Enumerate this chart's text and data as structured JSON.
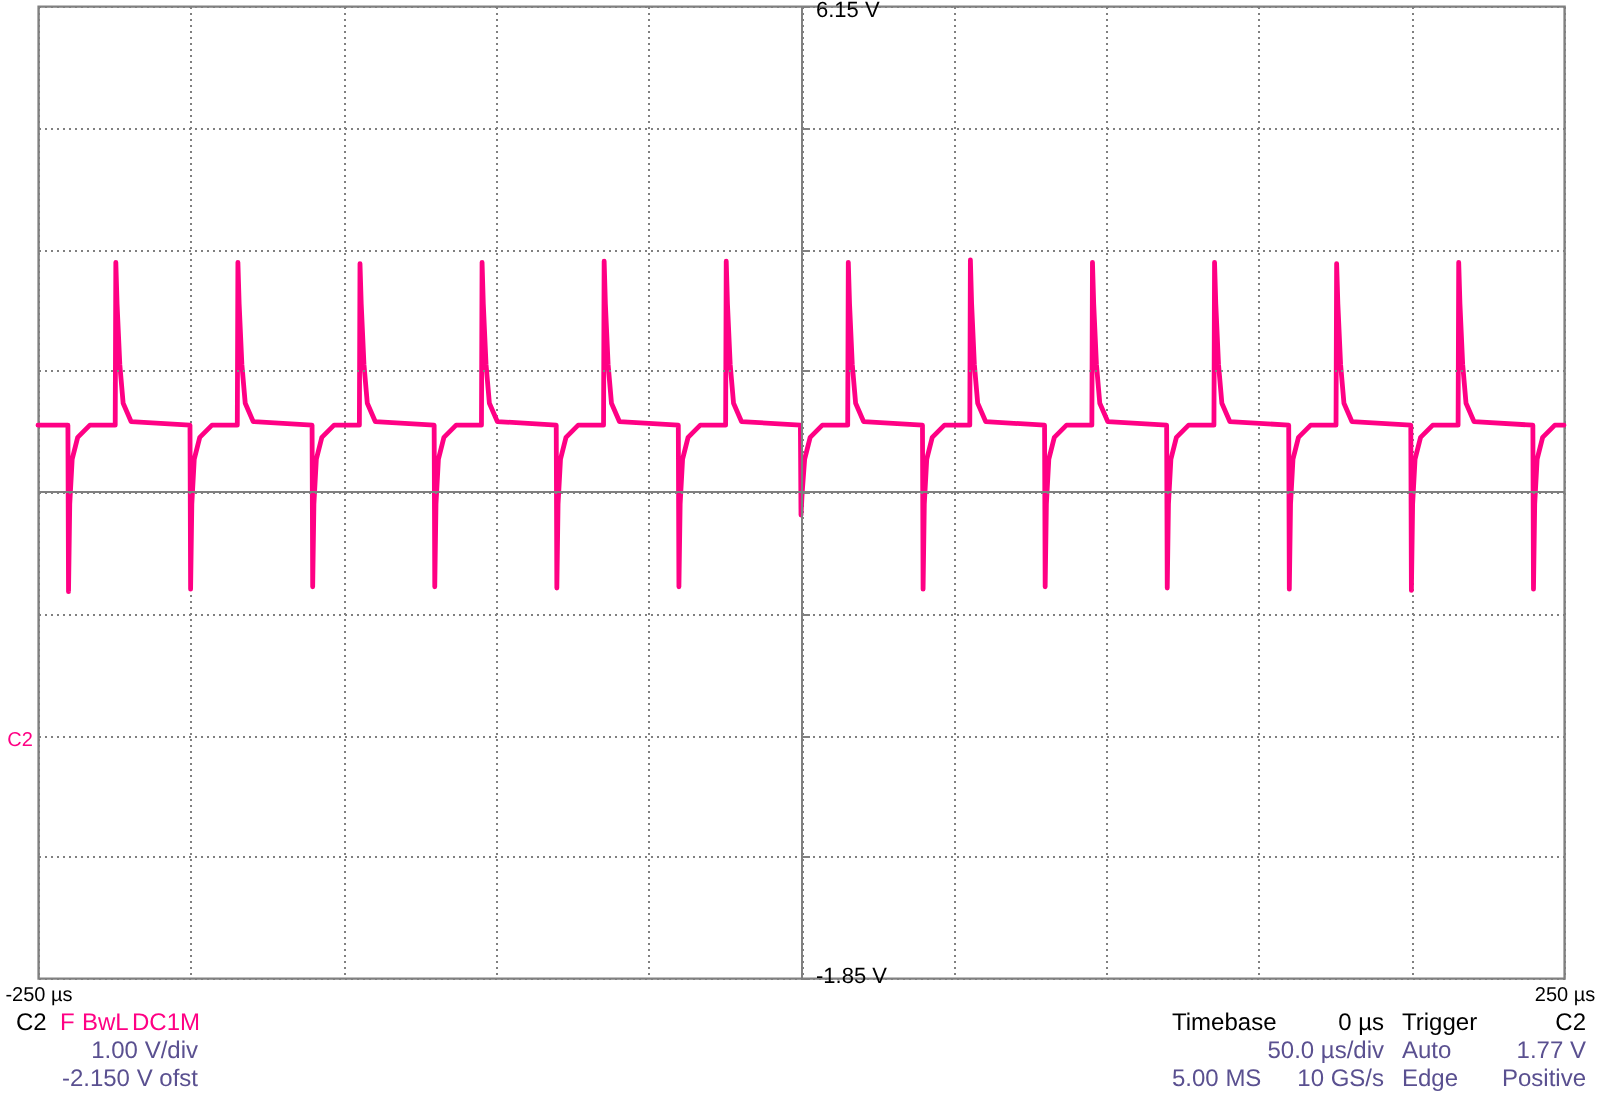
{
  "chart_data": {
    "type": "line",
    "xlim": [
      -250,
      250
    ],
    "ylim": [
      -1.85,
      6.15
    ],
    "xticks": [
      {
        "value": -250,
        "label": "-250 µs"
      },
      {
        "value": -200,
        "label": null
      },
      {
        "value": -150,
        "label": null
      },
      {
        "value": -100,
        "label": null
      },
      {
        "value": -50,
        "label": null
      },
      {
        "value": 0,
        "label": null
      },
      {
        "value": 50,
        "label": null
      },
      {
        "value": 100,
        "label": null
      },
      {
        "value": 150,
        "label": null
      },
      {
        "value": 200,
        "label": null
      },
      {
        "value": 250,
        "label": "250 µs"
      }
    ],
    "yticks": [
      {
        "value": 6.15,
        "label": "6.15 V"
      },
      {
        "value": 5.15,
        "label": null
      },
      {
        "value": 4.15,
        "label": null
      },
      {
        "value": 3.15,
        "label": null
      },
      {
        "value": 2.15,
        "label": null
      },
      {
        "value": 1.15,
        "label": null
      },
      {
        "value": 0.15,
        "label": null
      },
      {
        "value": -0.85,
        "label": null
      },
      {
        "value": -1.85,
        "label": "-1.85 V"
      }
    ],
    "grid": true,
    "ref_lines": [
      {
        "axis": "y",
        "value": 2.15,
        "color": "#808080"
      }
    ],
    "x": [
      -250,
      -240.2,
      -240,
      -239.6,
      -238.8,
      -237,
      -233,
      -224.7,
      -224.5,
      -224.1,
      -223.2,
      -222.1,
      -219.5,
      -200.2,
      -200,
      -199.6,
      -198.8,
      -197,
      -193,
      -184.7,
      -184.5,
      -184.1,
      -183.2,
      -182.1,
      -179.5,
      -160.2,
      -160,
      -159.6,
      -158.8,
      -157,
      -153,
      -144.7,
      -144.5,
      -144.1,
      -143.2,
      -142.1,
      -139.5,
      -120.2,
      -120,
      -119.6,
      -118.8,
      -117,
      -113,
      -104.7,
      -104.5,
      -104.1,
      -103.2,
      -102.1,
      -99.5,
      -80.2,
      -80,
      -79.6,
      -78.8,
      -77,
      -73,
      -64.7,
      -64.5,
      -64.1,
      -63.2,
      -62.1,
      -59.5,
      -40.2,
      -40,
      -39.6,
      -38.8,
      -37,
      -33,
      -24.7,
      -24.5,
      -24.1,
      -23.2,
      -22.1,
      -19.5,
      -0.2,
      0,
      0.4,
      1.2,
      3,
      7,
      15.3,
      15.5,
      15.9,
      16.8,
      17.9,
      20.5,
      39.8,
      40,
      40.4,
      41.2,
      43,
      47,
      55.3,
      55.5,
      55.9,
      56.8,
      57.9,
      60.5,
      79.8,
      80,
      80.4,
      81.2,
      83,
      87,
      95.3,
      95.5,
      95.9,
      96.8,
      97.9,
      100.5,
      119.8,
      120,
      120.4,
      121.2,
      123,
      127,
      135.3,
      135.5,
      135.9,
      136.8,
      137.9,
      140.5,
      159.8,
      160,
      160.4,
      161.2,
      163,
      167,
      175.3,
      175.5,
      175.9,
      176.8,
      177.9,
      180.5,
      199.8,
      200,
      200.4,
      201.2,
      203,
      207,
      215.3,
      215.5,
      215.9,
      216.8,
      217.9,
      220.5,
      239.8,
      240,
      240.4,
      241.2,
      243,
      247,
      250
    ],
    "series": [
      {
        "color": "#ff0084",
        "values": [
          2.7,
          2.7,
          1.33,
          2.05,
          2.42,
          2.6,
          2.7,
          2.7,
          4.04,
          3.7,
          3.2,
          2.88,
          2.73,
          2.7,
          1.35,
          2.05,
          2.42,
          2.6,
          2.7,
          2.7,
          4.04,
          3.7,
          3.2,
          2.88,
          2.73,
          2.7,
          1.37,
          2.05,
          2.42,
          2.6,
          2.7,
          2.7,
          4.03,
          3.7,
          3.2,
          2.88,
          2.73,
          2.7,
          1.37,
          2.05,
          2.42,
          2.6,
          2.7,
          2.7,
          4.04,
          3.7,
          3.2,
          2.88,
          2.73,
          2.7,
          1.36,
          2.05,
          2.42,
          2.6,
          2.7,
          2.7,
          4.05,
          3.7,
          3.2,
          2.88,
          2.73,
          2.7,
          1.37,
          2.05,
          2.42,
          2.6,
          2.7,
          2.7,
          4.05,
          3.7,
          3.2,
          2.88,
          2.73,
          2.7,
          1.96,
          2.15,
          2.42,
          2.6,
          2.7,
          2.7,
          4.04,
          3.7,
          3.2,
          2.88,
          2.73,
          2.7,
          1.35,
          2.05,
          2.42,
          2.6,
          2.7,
          2.7,
          4.06,
          3.7,
          3.2,
          2.88,
          2.73,
          2.7,
          1.37,
          2.05,
          2.42,
          2.6,
          2.7,
          2.7,
          4.04,
          3.7,
          3.2,
          2.88,
          2.73,
          2.7,
          1.36,
          2.05,
          2.42,
          2.6,
          2.7,
          2.7,
          4.04,
          3.7,
          3.2,
          2.88,
          2.73,
          2.7,
          1.35,
          2.05,
          2.42,
          2.6,
          2.7,
          2.7,
          4.03,
          3.7,
          3.2,
          2.88,
          2.73,
          2.7,
          1.34,
          2.05,
          2.42,
          2.6,
          2.7,
          2.7,
          4.04,
          3.7,
          3.2,
          2.88,
          2.73,
          2.7,
          1.35,
          2.05,
          2.42,
          2.6,
          2.7,
          2.7
        ]
      }
    ],
    "annotations": [
      "C2",
      "F",
      "BwL",
      "DC1M",
      "1.00 V/div",
      "-2.150 V ofst",
      "Timebase",
      "0 µs",
      "50.0 µs/div",
      "5.00 MS",
      "10 GS/s",
      "Trigger",
      "C2",
      "Auto",
      "1.77 V",
      "Edge",
      "Positive",
      "C2"
    ]
  }
}
